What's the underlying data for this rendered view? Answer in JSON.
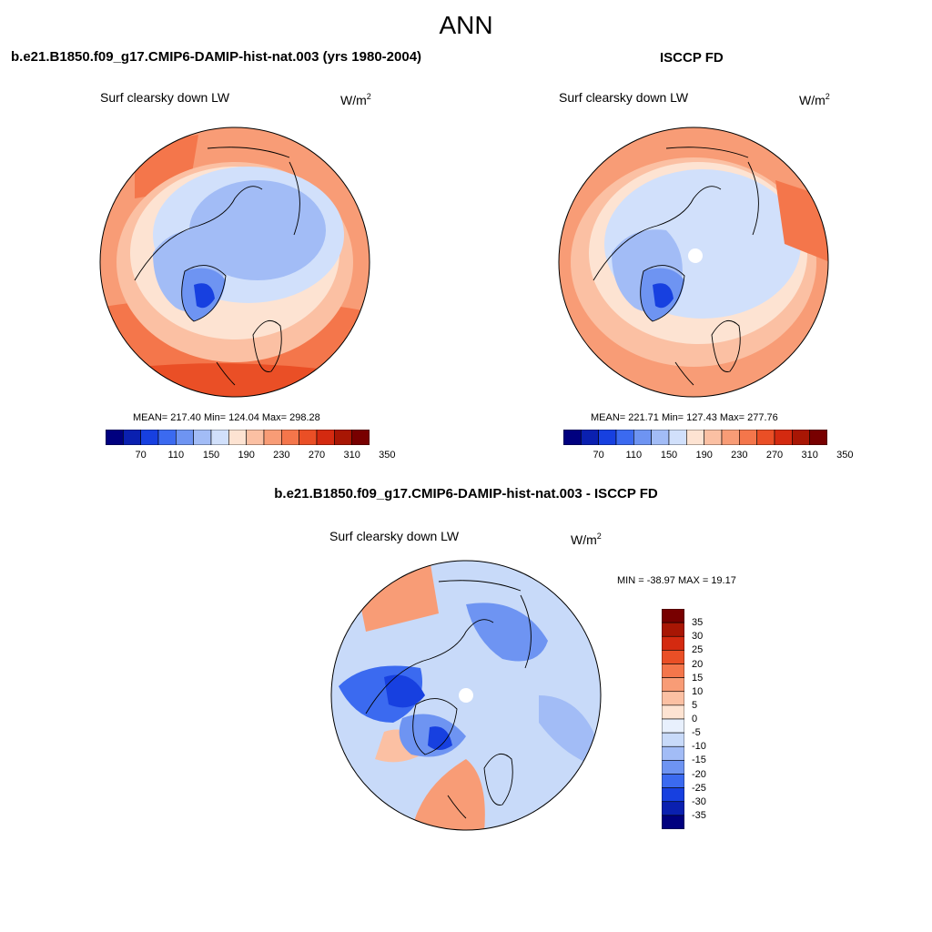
{
  "header": {
    "season": "ANN"
  },
  "panels": {
    "test": {
      "title": "b.e21.B1850.f09_g17.CMIP6-DAMIP-hist-nat.003 (yrs 1980-2004)",
      "variable": "Surf clearsky down LW",
      "units_base": "W/m",
      "units_exp": "2",
      "stats": "MEAN= 217.40  Min= 124.04  Max= 298.28"
    },
    "obs": {
      "title": "ISCCP FD",
      "variable": "Surf clearsky down LW",
      "units_base": "W/m",
      "units_exp": "2",
      "stats": "MEAN= 221.71  Min= 127.43  Max= 277.76"
    },
    "diff": {
      "title": "b.e21.B1850.f09_g17.CMIP6-DAMIP-hist-nat.003 - ISCCP FD",
      "variable": "Surf clearsky down LW",
      "units": "W/m",
      "units_exp": "2",
      "minmax": "MIN = -38.97 MAX =  19.17"
    }
  },
  "colorbar_abs": {
    "colors": [
      "#00007f",
      "#0a20b0",
      "#1740e0",
      "#3b6af0",
      "#6e94f2",
      "#a2bcf6",
      "#d1e0fb",
      "#fde3d2",
      "#fbc0a3",
      "#f89c76",
      "#f4764b",
      "#ea4f26",
      "#d42a10",
      "#a81604",
      "#780000"
    ],
    "ticks": [
      "70",
      "110",
      "150",
      "190",
      "230",
      "270",
      "310",
      "350"
    ]
  },
  "colorbar_diff": {
    "colors": [
      "#780000",
      "#a81604",
      "#d42a10",
      "#ea4f26",
      "#f4764b",
      "#f89c76",
      "#fbc0a3",
      "#fde3d2",
      "#e8f0fd",
      "#c8daf9",
      "#a2bcf6",
      "#6e94f2",
      "#3b6af0",
      "#1740e0",
      "#0a20b0",
      "#00007f"
    ],
    "ticks": [
      "35",
      "30",
      "25",
      "20",
      "15",
      "10",
      "5",
      "0",
      "-5",
      "-10",
      "-15",
      "-20",
      "-25",
      "-30",
      "-35"
    ]
  },
  "map_colors": {
    "ocean_far": "#f89c76",
    "ring_mid": "#fbc0a3",
    "ring_inner": "#fde3d2",
    "arctic": "#d1e0fb",
    "arctic_core": "#a2bcf6",
    "greenland": "#6e94f2",
    "greenland_core": "#1740e0",
    "hot": "#f4764b",
    "diff_bg": "#c8daf9",
    "diff_mid": "#a2bcf6",
    "diff_strong": "#3b6af0",
    "diff_warm": "#f89c76",
    "diff_warm2": "#fbc0a3"
  }
}
